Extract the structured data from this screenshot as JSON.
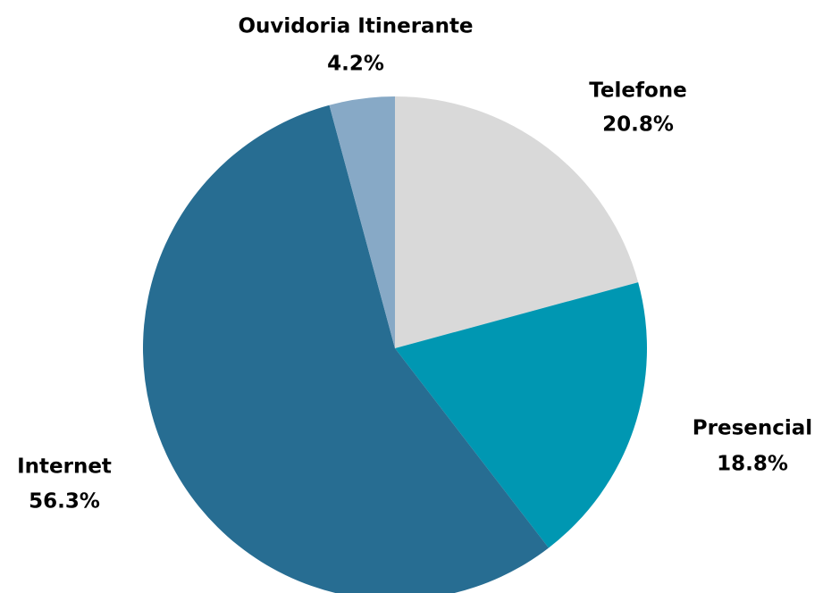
{
  "chart_data": {
    "type": "pie",
    "categories": [
      "Telefone",
      "Presencial",
      "Internet",
      "Ouvidoria Itinerante"
    ],
    "values": [
      20.8,
      18.8,
      56.3,
      4.2
    ],
    "value_labels": [
      "20.8%",
      "18.8%",
      "56.3%",
      "4.2%"
    ],
    "colors": [
      "#d9d9d9",
      "#0097b2",
      "#276d92",
      "#87a9c6"
    ]
  }
}
